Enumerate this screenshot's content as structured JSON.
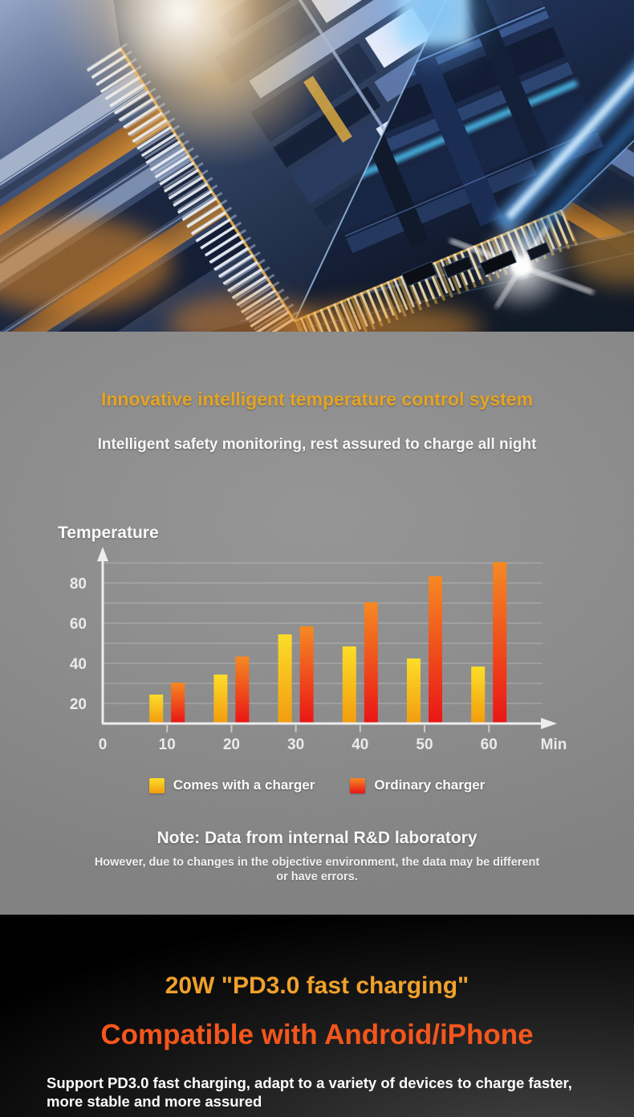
{
  "section_temperature": {
    "title": "Innovative intelligent temperature control system",
    "title_color": "#e7a31d",
    "subtitle": "Intelligent safety monitoring, rest assured to charge all night",
    "note_title": "Note: Data from internal R&D laboratory",
    "note_body": "However, due to changes in the objective environment, the data may be different or have errors."
  },
  "chart_data": {
    "type": "bar",
    "title": "",
    "ylabel": "Temperature",
    "xlabel": "Min",
    "x_axis_start_label": "0",
    "categories": [
      10,
      20,
      30,
      40,
      50,
      60
    ],
    "series": [
      {
        "name": "Comes with a charger",
        "values": [
          24,
          34,
          54,
          48,
          42,
          38
        ],
        "color_top": "#ffdf22",
        "color_bottom": "#f69b06"
      },
      {
        "name": "Ordinary charger",
        "values": [
          30,
          43,
          58,
          70,
          83,
          90
        ],
        "color_top": "#f8871c",
        "color_bottom": "#ec0e0e"
      }
    ],
    "yticks": [
      20,
      40,
      60,
      80
    ],
    "ylim": [
      10,
      95
    ],
    "grid": true,
    "gridline_step": 10,
    "legend_position": "bottom",
    "axis_color": "#f0f0f0",
    "tick_label_color": "#ededed"
  },
  "section_fast_charging": {
    "heading_gold": "20W \"PD3.0 fast charging\"",
    "heading_gold_color": "#f0a12b",
    "heading_orange": "Compatible with Android/iPhone",
    "heading_orange_color": "#f4561c",
    "body": "Support PD3.0 fast charging, adapt to a variety of devices to charge faster, more stable and more assured"
  }
}
